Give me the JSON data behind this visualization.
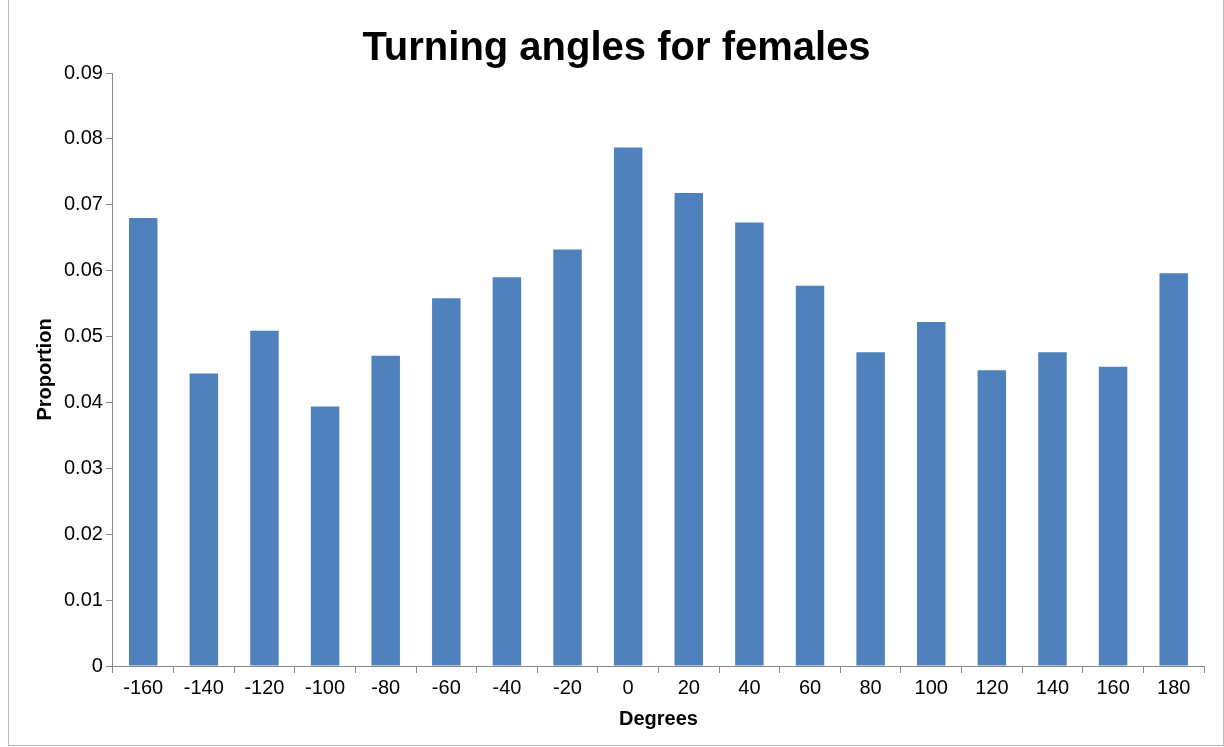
{
  "chart_data": {
    "type": "bar",
    "title": "Turning angles for females",
    "xlabel": "Degrees",
    "ylabel": "Proportion",
    "categories": [
      "-160",
      "-140",
      "-120",
      "-100",
      "-80",
      "-60",
      "-40",
      "-20",
      "0",
      "20",
      "40",
      "60",
      "80",
      "100",
      "120",
      "140",
      "160",
      "180"
    ],
    "values": [
      0.068,
      0.0444,
      0.0509,
      0.0394,
      0.0471,
      0.0558,
      0.059,
      0.0632,
      0.0787,
      0.0718,
      0.0673,
      0.0577,
      0.0476,
      0.0522,
      0.0449,
      0.0476,
      0.0454,
      0.0596
    ],
    "color": "#4f81bd",
    "ylim": [
      0,
      0.09
    ],
    "yticks": [
      0,
      0.01,
      0.02,
      0.03,
      0.04,
      0.05,
      0.06,
      0.07,
      0.08,
      0.09
    ],
    "grid": false,
    "legend": false
  }
}
